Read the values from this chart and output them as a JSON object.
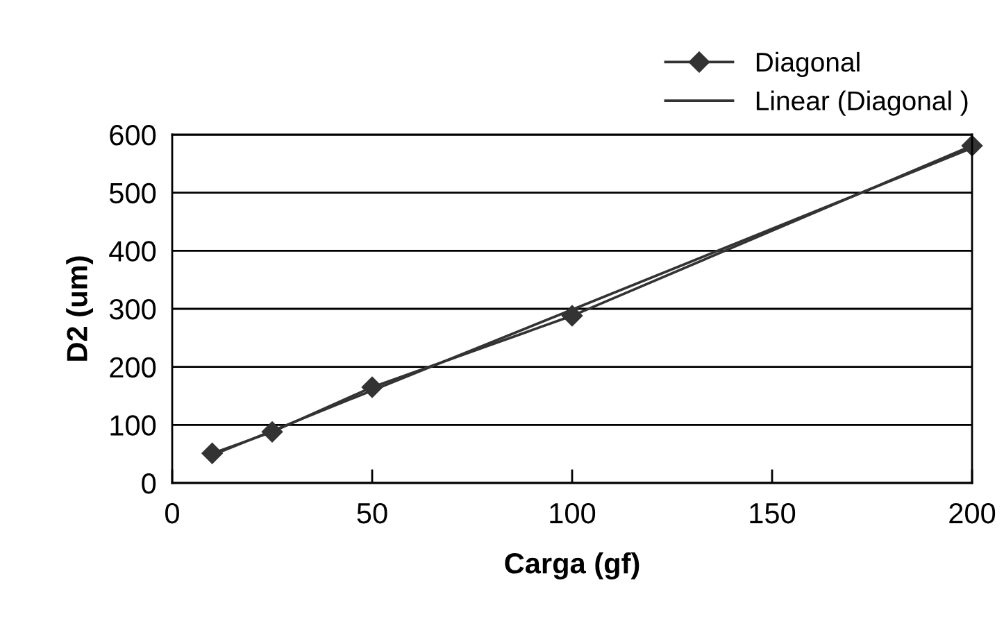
{
  "chart_data": {
    "type": "line",
    "xlabel": "Carga (gf)",
    "ylabel": "D2 (um)",
    "series": [
      {
        "name": "Diagonal",
        "color": "#333333",
        "x": [
          10,
          25,
          50,
          100,
          200
        ],
        "values": [
          51,
          88,
          165,
          288,
          581
        ],
        "marker": "diamond"
      },
      {
        "name": "Linear (Diagonal )",
        "color": "#333333",
        "x": [
          10,
          200
        ],
        "values": [
          48,
          577
        ],
        "marker": "none"
      }
    ],
    "xlim": [
      0,
      200
    ],
    "xticks": [
      0,
      50,
      100,
      150,
      200
    ],
    "ylim": [
      0,
      600
    ],
    "yticks": [
      0,
      100,
      200,
      300,
      400,
      500,
      600
    ],
    "grid": "y",
    "legend": "top right"
  }
}
